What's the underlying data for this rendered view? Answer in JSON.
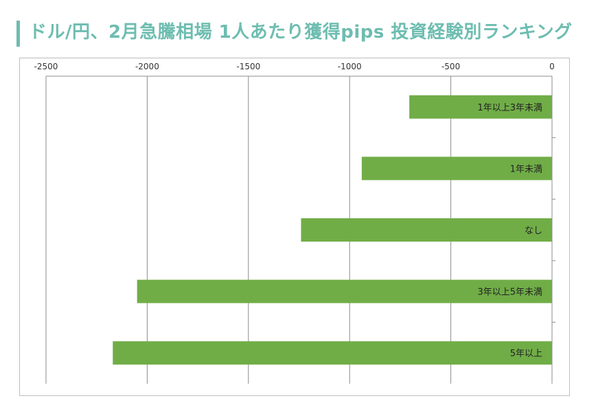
{
  "title": "ドル/円、2月急騰相場 1人あたり獲得pips 投資経験別ランキング",
  "colors": {
    "accent": "#6dbdb0",
    "bar": "#70ad47",
    "grid": "#8c8c8c"
  },
  "chart_data": {
    "type": "bar",
    "orientation": "horizontal",
    "title": "",
    "xlabel": "",
    "ylabel": "",
    "xlim": [
      -2500,
      0
    ],
    "xticks": [
      -2500,
      -2000,
      -1500,
      -1000,
      -500,
      0
    ],
    "xtick_labels": [
      "-2500",
      "-2000",
      "-1500",
      "-1000",
      "-500",
      "0"
    ],
    "axis_position": "top",
    "grid": true,
    "categories": [
      "1年以上3年未満",
      "1年未満",
      "なし",
      "3年以上5年未満",
      "5年以上"
    ],
    "values": [
      -705,
      -940,
      -1240,
      -2050,
      -2170
    ]
  }
}
